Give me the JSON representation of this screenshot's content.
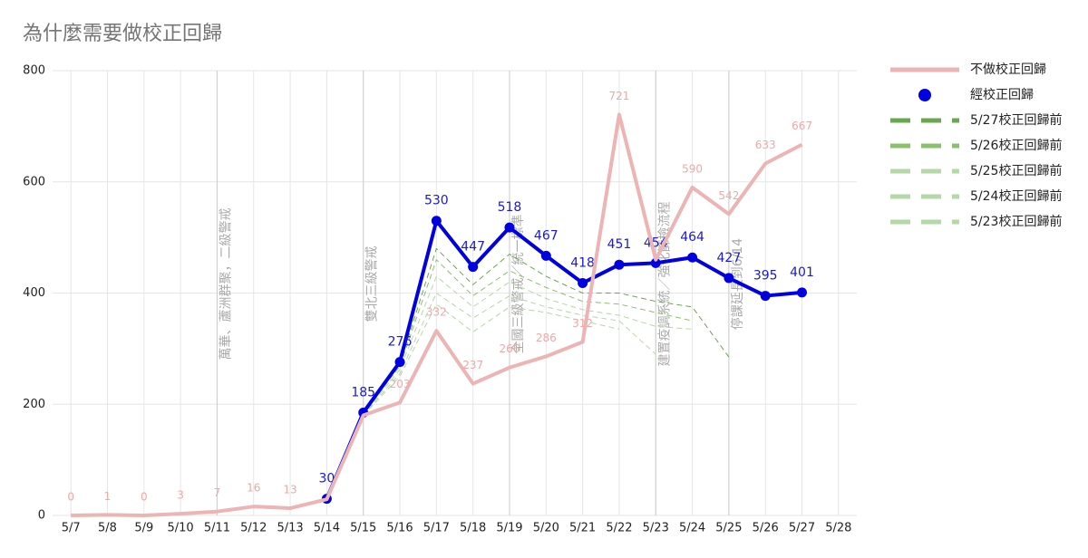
{
  "chart_data": {
    "type": "line",
    "title": "為什麼需要做校正回歸",
    "categories": [
      "5/7",
      "5/8",
      "5/9",
      "5/10",
      "5/11",
      "5/12",
      "5/13",
      "5/14",
      "5/15",
      "5/16",
      "5/17",
      "5/18",
      "5/19",
      "5/20",
      "5/21",
      "5/22",
      "5/23",
      "5/24",
      "5/25",
      "5/26",
      "5/27",
      "5/28"
    ],
    "ylim": [
      0,
      800
    ],
    "yticks": [
      0,
      200,
      400,
      600,
      800
    ],
    "grid": true,
    "legend": "right",
    "series": [
      {
        "name": "不做校正回歸",
        "color": "#ecb4b4",
        "width": 4,
        "label_color": "#f0a8a8",
        "values": [
          0,
          1,
          0,
          3,
          7,
          16,
          13,
          29,
          180,
          203,
          332,
          237,
          266,
          286,
          312,
          721,
          460,
          590,
          542,
          633,
          667,
          null
        ],
        "value_labels": [
          "0",
          "1",
          "0",
          "3",
          "7",
          "16",
          "13",
          null,
          null,
          "203",
          "332",
          "237",
          "266",
          "286",
          "312",
          "721",
          null,
          "590",
          "542",
          "633",
          "667",
          null
        ]
      },
      {
        "name": "經校正回歸",
        "color": "#0000e0",
        "width": 4,
        "marker": true,
        "label_color": "#1a1acc",
        "values": [
          null,
          null,
          null,
          null,
          null,
          null,
          null,
          30,
          185,
          276,
          530,
          447,
          518,
          467,
          418,
          451,
          454,
          464,
          427,
          395,
          401,
          null
        ],
        "value_labels": [
          null,
          null,
          null,
          null,
          null,
          null,
          null,
          "30",
          "185",
          "276",
          "530",
          "447",
          "518",
          "467",
          "418",
          "451",
          "454",
          "464",
          "427",
          "395",
          "401",
          null
        ]
      },
      {
        "name": "5/27校正回歸前",
        "color": "#6aa84f",
        "width": 1,
        "dash": true,
        "values": [
          null,
          null,
          null,
          null,
          null,
          null,
          null,
          30,
          185,
          272,
          480,
          415,
          470,
          430,
          400,
          400,
          385,
          375,
          285,
          null,
          null,
          null
        ]
      },
      {
        "name": "5/26校正回歸前",
        "color": "#8bc06c",
        "width": 1,
        "dash": true,
        "values": [
          null,
          null,
          null,
          null,
          null,
          null,
          null,
          30,
          185,
          268,
          460,
          395,
          440,
          410,
          385,
          380,
          365,
          350,
          null,
          null,
          null,
          null
        ]
      },
      {
        "name": "5/25校正回歸前",
        "color": "#b6d7a8",
        "width": 1,
        "dash": true,
        "values": [
          null,
          null,
          null,
          null,
          null,
          null,
          null,
          30,
          183,
          262,
          430,
          375,
          420,
          390,
          370,
          360,
          340,
          335,
          null,
          null,
          null,
          null
        ]
      },
      {
        "name": "5/24校正回歸前",
        "color": "#b6d7a8",
        "width": 1,
        "dash": true,
        "values": [
          null,
          null,
          null,
          null,
          null,
          null,
          null,
          30,
          182,
          255,
          400,
          355,
          395,
          375,
          360,
          350,
          290,
          null,
          null,
          null,
          null,
          null
        ]
      },
      {
        "name": "5/23校正回歸前",
        "color": "#b6d7a8",
        "width": 1,
        "dash": true,
        "values": [
          null,
          null,
          null,
          null,
          null,
          null,
          null,
          30,
          180,
          250,
          380,
          330,
          375,
          365,
          350,
          335,
          null,
          null,
          null,
          null,
          null,
          null
        ]
      }
    ],
    "annotations": [
      {
        "x": "5/11",
        "text": "萬華、蘆洲群聚，二級警戒"
      },
      {
        "x": "5/15",
        "text": "雙北三級警戒"
      },
      {
        "x": "5/19",
        "text": "全國三級警戒／統一標準"
      },
      {
        "x": "5/23",
        "text": "建置疫調系統／強化篩檢流程"
      },
      {
        "x": "5/25",
        "text": "停課延長到6/14"
      }
    ]
  }
}
